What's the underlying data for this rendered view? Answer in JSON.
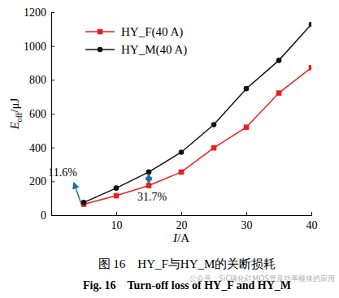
{
  "chart_data": {
    "type": "line",
    "xlabel": [
      "I",
      "/A"
    ],
    "ylabel": [
      "E",
      "off",
      "/μJ"
    ],
    "x": [
      5,
      10,
      15,
      20,
      25,
      30,
      35,
      40
    ],
    "series": [
      {
        "name": "HY_F(40 A)",
        "color": "#e8201c",
        "marker": "square",
        "line_style": "solid",
        "values": [
          65,
          115,
          175,
          255,
          398,
          520,
          722,
          872
        ]
      },
      {
        "name": "HY_M(40 A)",
        "color": "#111111",
        "marker": "circle",
        "line_style": "solid",
        "values": [
          75,
          160,
          255,
          372,
          535,
          748,
          915,
          1128
        ]
      }
    ],
    "xlim": [
      0,
      40
    ],
    "xticks": [
      10,
      20,
      30,
      40
    ],
    "ylim": [
      0,
      1200
    ],
    "yticks": [
      0,
      200,
      400,
      600,
      800,
      1000,
      1200
    ],
    "grid": false,
    "legend": "upper left",
    "annotations": [
      {
        "text": "11.6%",
        "x": 5
      },
      {
        "text": "31.7%",
        "x": 15
      }
    ],
    "caption": [
      "图 16　HY_F与HY_M的关断损耗",
      "Fig. 16　Turn-off loss of HY_F and HY_M"
    ],
    "watermark": "公众号 · SiC碳化硅MOS管及功率模块的应用"
  }
}
